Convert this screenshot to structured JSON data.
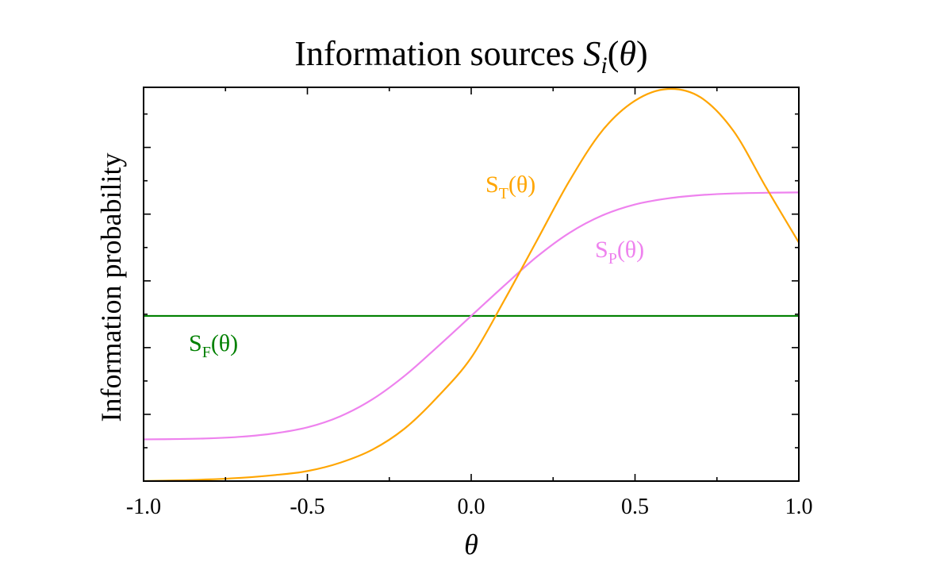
{
  "chart_data": {
    "type": "line",
    "title": {
      "main": "Information sources ",
      "math_symbol": "S",
      "math_subscript": "i",
      "math_arg_open": "(",
      "math_arg": "θ",
      "math_arg_close": ")"
    },
    "xlabel": "θ",
    "ylabel": "Information probability",
    "xlim": [
      -1.0,
      1.0
    ],
    "ylim": [
      0,
      1.18
    ],
    "x_ticks": [
      -1.0,
      -0.5,
      0.0,
      0.5,
      1.0
    ],
    "x_tick_labels": [
      "-1.0",
      "-0.5",
      "0.0",
      "0.5",
      "1.0"
    ],
    "x_minor_ticks": [
      -0.75,
      -0.25,
      0.25,
      0.75
    ],
    "y_ticks": [
      0.2,
      0.4,
      0.6,
      0.8,
      1.0
    ],
    "y_minor_ticks": [
      0.1,
      0.3,
      0.5,
      0.7,
      0.9,
      1.1
    ],
    "y_tick_labels_shown": false,
    "grid": false,
    "legend": "none (inline labels)",
    "series": [
      {
        "name": "S_F",
        "label_main": "S",
        "label_sub": "F",
        "label_arg": "(θ)",
        "color": "#008000",
        "x": [
          -1.0,
          -0.5,
          0.0,
          0.5,
          1.0
        ],
        "y": [
          0.495,
          0.495,
          0.495,
          0.495,
          0.495
        ]
      },
      {
        "name": "S_P",
        "label_main": "S",
        "label_sub": "P",
        "label_arg": "(θ)",
        "color": "#EE82EE",
        "x": [
          -1.0,
          -0.9,
          -0.8,
          -0.7,
          -0.6,
          -0.5,
          -0.4,
          -0.3,
          -0.2,
          -0.1,
          0.0,
          0.1,
          0.2,
          0.3,
          0.4,
          0.5,
          0.6,
          0.7,
          0.8,
          0.9,
          1.0
        ],
        "y": [
          0.125,
          0.126,
          0.128,
          0.133,
          0.143,
          0.161,
          0.194,
          0.246,
          0.318,
          0.405,
          0.495,
          0.585,
          0.672,
          0.744,
          0.796,
          0.829,
          0.847,
          0.857,
          0.862,
          0.864,
          0.865
        ]
      },
      {
        "name": "S_T",
        "label_main": "S",
        "label_sub": "T",
        "label_arg": "(θ)",
        "color": "#FFA500",
        "x": [
          -1.0,
          -0.9,
          -0.8,
          -0.7,
          -0.6,
          -0.5,
          -0.4,
          -0.3,
          -0.2,
          -0.1,
          0.0,
          0.1,
          0.2,
          0.3,
          0.4,
          0.5,
          0.6,
          0.7,
          0.8,
          0.9,
          1.0
        ],
        "y": [
          0.0,
          0.002,
          0.005,
          0.01,
          0.018,
          0.03,
          0.055,
          0.095,
          0.16,
          0.255,
          0.37,
          0.54,
          0.72,
          0.9,
          1.05,
          1.14,
          1.175,
          1.15,
          1.05,
          0.88,
          0.715
        ]
      }
    ]
  }
}
